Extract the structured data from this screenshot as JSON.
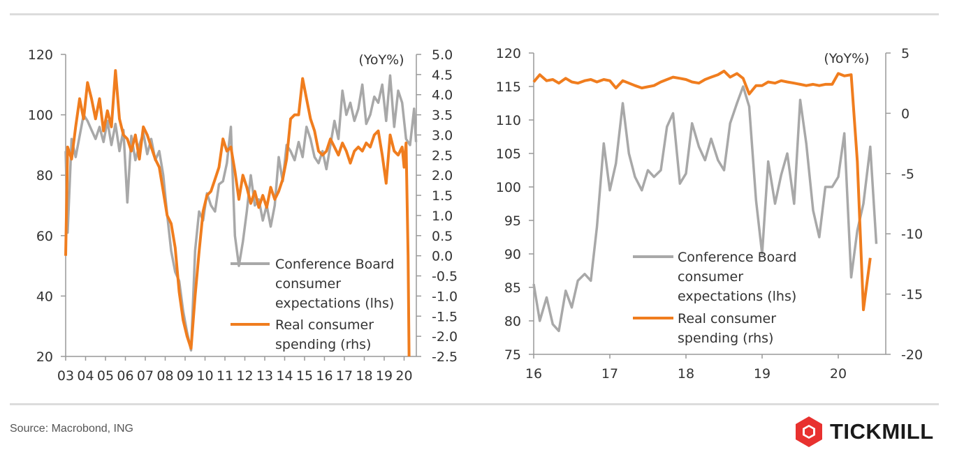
{
  "source": "Source: Macrobond, ING",
  "brand": {
    "name": "TICKMILL",
    "logo_icon": "tickmill-hexagon-logo-icon",
    "color": "#e8312f"
  },
  "colors": {
    "grey": "#a8a8a8",
    "orange": "#f07d1e",
    "axis": "#999999",
    "text": "#333333"
  },
  "chart_data": [
    {
      "type": "line",
      "title": "",
      "unit_label": "(YoY%)",
      "x_ticks": [
        "03",
        "04",
        "05",
        "06",
        "07",
        "08",
        "09",
        "10",
        "11",
        "12",
        "13",
        "14",
        "15",
        "16",
        "17",
        "18",
        "19",
        "20"
      ],
      "xlim": [
        2003,
        2020.7
      ],
      "y_left": {
        "ylim": [
          20,
          120
        ],
        "ticks": [
          "20",
          "40",
          "60",
          "80",
          "100",
          "120"
        ]
      },
      "y_right": {
        "ylim": [
          -2.5,
          5.0
        ],
        "ticks": [
          "5.0",
          "4.5",
          "4.0",
          "3.5",
          "3.0",
          "2.5",
          "2.0",
          "1.5",
          "1.0",
          "0.5",
          "0.0",
          "-0.5",
          "-1.0",
          "-1.5",
          "-2.0",
          "-2.5"
        ]
      },
      "legend": [
        "Conference Board consumer expectations (lhs)",
        "Real consumer spending (rhs)"
      ],
      "legend_lines": [
        [
          "Conference Board",
          "consumer",
          "expectations (lhs)"
        ],
        [
          "Real consumer",
          "spending (rhs)"
        ]
      ],
      "series": [
        {
          "name": "Conference Board consumer expectations (lhs)",
          "axis": "left",
          "x": [
            2003.0,
            2003.1,
            2003.3,
            2003.5,
            2003.7,
            2003.9,
            2004.1,
            2004.3,
            2004.5,
            2004.7,
            2004.9,
            2005.1,
            2005.3,
            2005.5,
            2005.7,
            2005.9,
            2006.1,
            2006.3,
            2006.5,
            2006.7,
            2006.9,
            2007.1,
            2007.3,
            2007.5,
            2007.7,
            2007.9,
            2008.1,
            2008.3,
            2008.5,
            2008.7,
            2008.9,
            2009.1,
            2009.3,
            2009.5,
            2009.7,
            2009.9,
            2010.1,
            2010.3,
            2010.5,
            2010.7,
            2010.9,
            2011.1,
            2011.3,
            2011.5,
            2011.7,
            2011.9,
            2012.1,
            2012.3,
            2012.5,
            2012.7,
            2012.9,
            2013.1,
            2013.3,
            2013.5,
            2013.7,
            2013.9,
            2014.1,
            2014.3,
            2014.5,
            2014.7,
            2014.9,
            2015.1,
            2015.3,
            2015.5,
            2015.7,
            2015.9,
            2016.1,
            2016.3,
            2016.5,
            2016.7,
            2016.9,
            2017.1,
            2017.3,
            2017.5,
            2017.7,
            2017.9,
            2018.1,
            2018.3,
            2018.5,
            2018.7,
            2018.9,
            2019.1,
            2019.3,
            2019.5,
            2019.7,
            2019.9,
            2020.1,
            2020.3,
            2020.5,
            2020.6
          ],
          "values": [
            88,
            61,
            92,
            86,
            93,
            100,
            98,
            95,
            92,
            96,
            91,
            98,
            90,
            97,
            88,
            95,
            71,
            93,
            85,
            90,
            94,
            87,
            92,
            85,
            88,
            80,
            67,
            55,
            48,
            45,
            35,
            28,
            22,
            55,
            68,
            65,
            74,
            70,
            68,
            77,
            78,
            84,
            96,
            60,
            50,
            58,
            68,
            80,
            70,
            72,
            65,
            70,
            63,
            70,
            86,
            78,
            90,
            88,
            85,
            91,
            86,
            96,
            92,
            86,
            84,
            88,
            82,
            90,
            98,
            92,
            108,
            100,
            104,
            98,
            102,
            110,
            97,
            100,
            106,
            104,
            110,
            98,
            113,
            96,
            108,
            104,
            92,
            90,
            102,
            91
          ]
        },
        {
          "name": "Real consumer spending (rhs)",
          "axis": "right",
          "x": [
            2003.0,
            2003.1,
            2003.3,
            2003.5,
            2003.7,
            2003.9,
            2004.1,
            2004.3,
            2004.5,
            2004.7,
            2004.9,
            2005.1,
            2005.3,
            2005.5,
            2005.7,
            2005.9,
            2006.1,
            2006.3,
            2006.5,
            2006.7,
            2006.9,
            2007.1,
            2007.3,
            2007.5,
            2007.7,
            2007.9,
            2008.1,
            2008.3,
            2008.5,
            2008.7,
            2008.9,
            2009.1,
            2009.3,
            2009.5,
            2009.7,
            2009.9,
            2010.1,
            2010.3,
            2010.5,
            2010.7,
            2010.9,
            2011.1,
            2011.3,
            2011.5,
            2011.7,
            2011.9,
            2012.1,
            2012.3,
            2012.5,
            2012.7,
            2012.9,
            2013.1,
            2013.3,
            2013.5,
            2013.7,
            2013.9,
            2014.1,
            2014.3,
            2014.5,
            2014.7,
            2014.9,
            2015.1,
            2015.3,
            2015.5,
            2015.7,
            2015.9,
            2016.1,
            2016.3,
            2016.5,
            2016.7,
            2016.9,
            2017.1,
            2017.3,
            2017.5,
            2017.7,
            2017.9,
            2018.1,
            2018.3,
            2018.5,
            2018.7,
            2018.9,
            2019.1,
            2019.3,
            2019.5,
            2019.7,
            2019.9,
            2020.0,
            2020.1,
            2020.2,
            2020.25
          ],
          "values": [
            0.0,
            2.7,
            2.4,
            3.2,
            3.9,
            3.4,
            4.3,
            3.9,
            3.4,
            3.9,
            3.1,
            3.6,
            3.2,
            4.6,
            3.4,
            3.0,
            2.9,
            2.6,
            3.0,
            2.4,
            3.2,
            3.0,
            2.7,
            2.4,
            2.2,
            1.6,
            1.0,
            0.8,
            0.2,
            -0.9,
            -1.6,
            -2.0,
            -2.3,
            -1.0,
            0.1,
            1.1,
            1.5,
            1.6,
            1.9,
            2.2,
            2.9,
            2.6,
            2.7,
            2.1,
            1.4,
            2.0,
            1.7,
            1.3,
            1.6,
            1.2,
            1.5,
            1.2,
            1.7,
            1.4,
            1.6,
            1.9,
            2.4,
            3.4,
            3.5,
            3.5,
            4.4,
            3.9,
            3.4,
            3.1,
            2.6,
            2.5,
            2.6,
            2.9,
            2.7,
            2.5,
            2.8,
            2.6,
            2.3,
            2.6,
            2.7,
            2.6,
            2.8,
            2.7,
            3.0,
            3.1,
            2.5,
            1.8,
            3.0,
            2.6,
            2.5,
            2.7,
            2.2,
            2.8,
            0.0,
            -2.5
          ]
        }
      ]
    },
    {
      "type": "line",
      "title": "",
      "unit_label": "(YoY%)",
      "x_ticks": [
        "16",
        "17",
        "18",
        "19",
        "20"
      ],
      "xlim": [
        2016,
        2020.8
      ],
      "y_left": {
        "ylim": [
          75,
          120
        ],
        "ticks": [
          "75",
          "80",
          "85",
          "90",
          "95",
          "100",
          "105",
          "110",
          "115",
          "120"
        ]
      },
      "y_right": {
        "ylim": [
          -20,
          5
        ],
        "ticks": [
          "5",
          "0",
          "-5",
          "-10",
          "-15",
          "-20"
        ]
      },
      "legend": [
        "Conference Board consumer expectations (lhs)",
        "Real consumer spending (rhs)"
      ],
      "legend_lines": [
        [
          "Conference Board",
          "consumer",
          "expectations (lhs)"
        ],
        [
          "Real consumer",
          "spending (rhs)"
        ]
      ],
      "series": [
        {
          "name": "Conference Board consumer expectations (lhs)",
          "axis": "left",
          "x": [
            2016.0,
            2016.08,
            2016.17,
            2016.25,
            2016.33,
            2016.42,
            2016.5,
            2016.58,
            2016.67,
            2016.75,
            2016.83,
            2016.92,
            2017.0,
            2017.08,
            2017.17,
            2017.25,
            2017.33,
            2017.42,
            2017.5,
            2017.58,
            2017.67,
            2017.75,
            2017.83,
            2017.92,
            2018.0,
            2018.08,
            2018.17,
            2018.25,
            2018.33,
            2018.42,
            2018.5,
            2018.58,
            2018.67,
            2018.75,
            2018.83,
            2018.92,
            2019.0,
            2019.08,
            2019.17,
            2019.25,
            2019.33,
            2019.42,
            2019.5,
            2019.58,
            2019.67,
            2019.75,
            2019.83,
            2019.92,
            2020.0,
            2020.08,
            2020.17,
            2020.25,
            2020.33,
            2020.42,
            2020.5
          ],
          "values": [
            85.5,
            80,
            83.5,
            79.5,
            78.5,
            84.5,
            82,
            86,
            87,
            86,
            94,
            106.5,
            99.5,
            103.5,
            112.5,
            105,
            101.5,
            99.5,
            102.5,
            101.5,
            102.5,
            109,
            111,
            100.5,
            102,
            109.5,
            106,
            104,
            107.2,
            104,
            102.5,
            109.5,
            112.5,
            115,
            112,
            98,
            90,
            103.8,
            97.5,
            101.8,
            105,
            97.5,
            113,
            106.5,
            96.5,
            92.5,
            100,
            100,
            101.5,
            108,
            86.5,
            93.5,
            97.5,
            106,
            91.5
          ]
        },
        {
          "name": "Real consumer spending (rhs)",
          "axis": "right",
          "x": [
            2016.0,
            2016.08,
            2016.17,
            2016.25,
            2016.33,
            2016.42,
            2016.5,
            2016.58,
            2016.67,
            2016.75,
            2016.83,
            2016.92,
            2017.0,
            2017.08,
            2017.17,
            2017.25,
            2017.33,
            2017.42,
            2017.5,
            2017.58,
            2017.67,
            2017.75,
            2017.83,
            2017.92,
            2018.0,
            2018.08,
            2018.17,
            2018.25,
            2018.33,
            2018.42,
            2018.5,
            2018.58,
            2018.67,
            2018.75,
            2018.83,
            2018.92,
            2019.0,
            2019.08,
            2019.17,
            2019.25,
            2019.33,
            2019.42,
            2019.5,
            2019.58,
            2019.67,
            2019.75,
            2019.83,
            2019.92,
            2020.0,
            2020.08,
            2020.17,
            2020.25,
            2020.33,
            2020.42
          ],
          "values": [
            2.6,
            3.2,
            2.7,
            2.8,
            2.5,
            2.9,
            2.6,
            2.5,
            2.7,
            2.8,
            2.6,
            2.8,
            2.7,
            2.1,
            2.7,
            2.5,
            2.3,
            2.1,
            2.2,
            2.3,
            2.6,
            2.8,
            3.0,
            2.9,
            2.8,
            2.6,
            2.5,
            2.8,
            3.0,
            3.2,
            3.5,
            3.0,
            3.3,
            2.9,
            1.6,
            2.3,
            2.3,
            2.6,
            2.5,
            2.7,
            2.6,
            2.5,
            2.4,
            2.3,
            2.4,
            2.3,
            2.4,
            2.4,
            3.3,
            3.1,
            3.2,
            -4.0,
            -16.3,
            -12.0
          ]
        }
      ]
    }
  ]
}
